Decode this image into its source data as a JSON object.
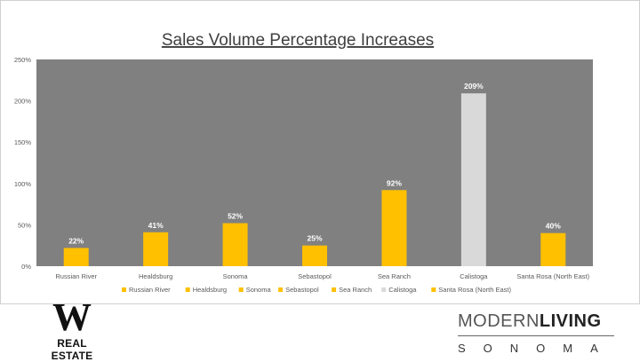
{
  "chart_data": {
    "type": "bar",
    "title": "Sales Volume Percentage Increases",
    "categories": [
      "Russian River",
      "Healdsburg",
      "Sonoma",
      "Sebastopol",
      "Sea Ranch",
      "Calistoga",
      "Santa Rosa (North East)"
    ],
    "values": [
      22,
      41,
      52,
      25,
      92,
      209,
      40
    ],
    "value_labels": [
      "22%",
      "41%",
      "52%",
      "25%",
      "92%",
      "209%",
      "40%"
    ],
    "colors": [
      "#FFC000",
      "#FFC000",
      "#FFC000",
      "#FFC000",
      "#FFC000",
      "#D9D9D9",
      "#FFC000"
    ],
    "ylim": [
      0,
      250
    ],
    "y_ticks": [
      0,
      50,
      100,
      150,
      200,
      250
    ],
    "y_tick_labels": [
      "0%",
      "50%",
      "100%",
      "150%",
      "200%",
      "250%"
    ],
    "xlabel": "",
    "ylabel": "",
    "plot_background": "#808080",
    "grid": false,
    "legend_position": "bottom",
    "legend": [
      "Russian River",
      "Healdsburg",
      "Sonoma",
      "Sebastopol",
      "Sea Ranch",
      "Calistoga",
      "Santa Rosa (North East)"
    ]
  },
  "branding": {
    "left_logo_letter": "W",
    "left_logo_text": "REAL ESTATE",
    "right_logo_word1": "MODERN",
    "right_logo_word2": "LIVING",
    "right_logo_subtitle": "SONOMA"
  }
}
